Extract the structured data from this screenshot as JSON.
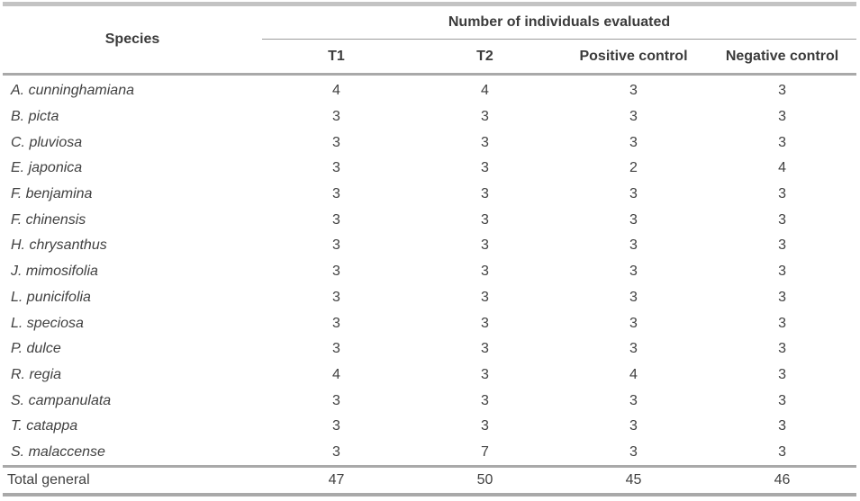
{
  "table": {
    "header": {
      "species_label": "Species",
      "group_label": "Number of individuals evaluated",
      "columns": [
        "T1",
        "T2",
        "Positive control",
        "Negative control"
      ]
    },
    "rows": [
      {
        "species": "A. cunninghamiana",
        "values": [
          "4",
          "4",
          "3",
          "3"
        ]
      },
      {
        "species": "B. picta",
        "values": [
          "3",
          "3",
          "3",
          "3"
        ]
      },
      {
        "species": "C. pluviosa",
        "values": [
          "3",
          "3",
          "3",
          "3"
        ]
      },
      {
        "species": "E. japonica",
        "values": [
          "3",
          "3",
          "2",
          "4"
        ]
      },
      {
        "species": "F. benjamina",
        "values": [
          "3",
          "3",
          "3",
          "3"
        ]
      },
      {
        "species": "F. chinensis",
        "values": [
          "3",
          "3",
          "3",
          "3"
        ]
      },
      {
        "species": "H. chrysanthus",
        "values": [
          "3",
          "3",
          "3",
          "3"
        ]
      },
      {
        "species": "J. mimosifolia",
        "values": [
          "3",
          "3",
          "3",
          "3"
        ]
      },
      {
        "species": "L. punicifolia",
        "values": [
          "3",
          "3",
          "3",
          "3"
        ]
      },
      {
        "species": "L. speciosa",
        "values": [
          "3",
          "3",
          "3",
          "3"
        ]
      },
      {
        "species": "P. dulce",
        "values": [
          "3",
          "3",
          "3",
          "3"
        ]
      },
      {
        "species": "R. regia",
        "values": [
          "4",
          "3",
          "4",
          "3"
        ]
      },
      {
        "species": "S. campanulata",
        "values": [
          "3",
          "3",
          "3",
          "3"
        ]
      },
      {
        "species": "T. catappa",
        "values": [
          "3",
          "3",
          "3",
          "3"
        ]
      },
      {
        "species": "S. malaccense",
        "values": [
          "3",
          "7",
          "3",
          "3"
        ]
      }
    ],
    "total": {
      "label": "Total general",
      "values": [
        "47",
        "50",
        "45",
        "46"
      ]
    }
  },
  "colors": {
    "rule_gray": "#a9a9a9",
    "top_rule_gray": "#c3c3c3",
    "thin_rule_gray": "#9c9c9c",
    "text": "#414141",
    "background": "#ffffff"
  }
}
